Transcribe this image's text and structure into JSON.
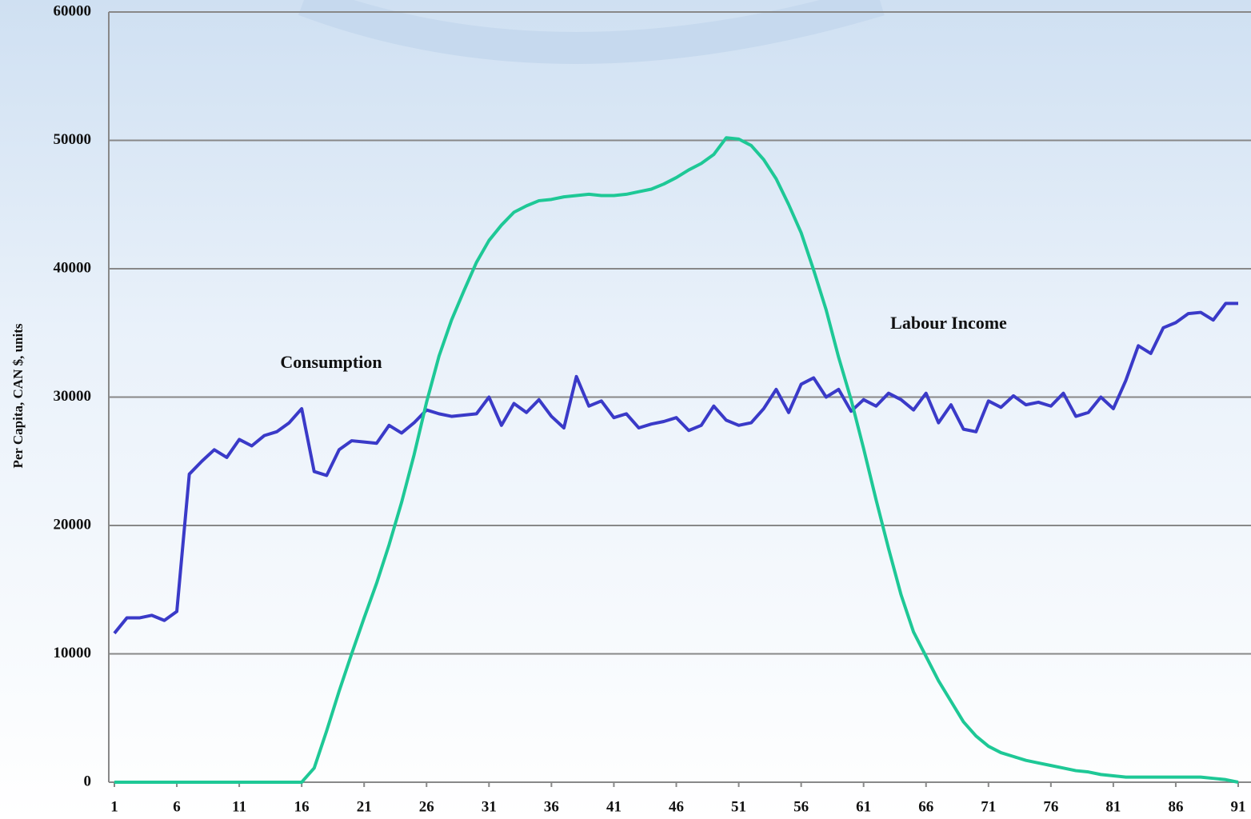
{
  "chart_data": {
    "type": "line",
    "y_label": "Per Capita, CAN $, units",
    "annotations": [
      "Consumption",
      "Labour Income"
    ],
    "x": [
      1,
      2,
      3,
      4,
      5,
      6,
      7,
      8,
      9,
      10,
      11,
      12,
      13,
      14,
      15,
      16,
      17,
      18,
      19,
      20,
      21,
      22,
      23,
      24,
      25,
      26,
      27,
      28,
      29,
      30,
      31,
      32,
      33,
      34,
      35,
      36,
      37,
      38,
      39,
      40,
      41,
      42,
      43,
      44,
      45,
      46,
      47,
      48,
      49,
      50,
      51,
      52,
      53,
      54,
      55,
      56,
      57,
      58,
      59,
      60,
      61,
      62,
      63,
      64,
      65,
      66,
      67,
      68,
      69,
      70,
      71,
      72,
      73,
      74,
      75,
      76,
      77,
      78,
      79,
      80,
      81,
      82,
      83,
      84,
      85,
      86,
      87,
      88,
      89,
      90,
      91
    ],
    "series": [
      {
        "name": "Consumption",
        "color": "#3a3ac8",
        "values": [
          11600,
          12800,
          12800,
          13000,
          12600,
          13300,
          24000,
          25000,
          25900,
          25300,
          26700,
          26200,
          27000,
          27300,
          28000,
          29100,
          24200,
          23900,
          25900,
          26600,
          26500,
          26400,
          27800,
          27200,
          28000,
          29000,
          28700,
          28500,
          28600,
          28700,
          30000,
          27800,
          29500,
          28800,
          29800,
          28500,
          27600,
          31600,
          29300,
          29700,
          28400,
          28700,
          27600,
          27900,
          28100,
          28400,
          27400,
          27800,
          29300,
          28200,
          27800,
          28000,
          29100,
          30600,
          28800,
          31000,
          31500,
          30000,
          30600,
          28900,
          29800,
          29300,
          30300,
          29800,
          29000,
          30300,
          28000,
          29400,
          27500,
          27300,
          29700,
          29200,
          30100,
          29400,
          29600,
          29300,
          30300,
          28500,
          28800,
          30000,
          29100,
          31300,
          34000,
          33400,
          35400,
          35800,
          36500,
          36600,
          36000,
          37300,
          37300
        ]
      },
      {
        "name": "Labour Income",
        "color": "#1ec896",
        "values": [
          0,
          0,
          0,
          0,
          0,
          0,
          0,
          0,
          0,
          0,
          0,
          0,
          0,
          0,
          0,
          0,
          1100,
          4000,
          7100,
          10000,
          12800,
          15500,
          18500,
          21800,
          25500,
          29600,
          33200,
          36000,
          38300,
          40500,
          42200,
          43400,
          44400,
          44900,
          45300,
          45400,
          45600,
          45700,
          45800,
          45700,
          45700,
          45800,
          46000,
          46200,
          46600,
          47100,
          47700,
          48200,
          48900,
          50200,
          50100,
          49600,
          48500,
          47000,
          45000,
          42800,
          39900,
          36800,
          33100,
          29800,
          26000,
          22000,
          18200,
          14600,
          11700,
          9800,
          7900,
          6300,
          4700,
          3600,
          2800,
          2300,
          2000,
          1700,
          1500,
          1300,
          1100,
          900,
          800,
          600,
          500,
          400,
          400,
          400,
          400,
          400,
          400,
          400,
          300,
          200,
          0
        ]
      }
    ],
    "xlim": [
      1,
      91
    ],
    "xticks": [
      1,
      6,
      11,
      16,
      21,
      26,
      31,
      36,
      41,
      46,
      51,
      56,
      61,
      66,
      71,
      76,
      81,
      86,
      91
    ],
    "ylim": [
      0,
      60000
    ],
    "yticks": [
      0,
      10000,
      20000,
      30000,
      40000,
      50000,
      60000
    ],
    "grid": true
  }
}
